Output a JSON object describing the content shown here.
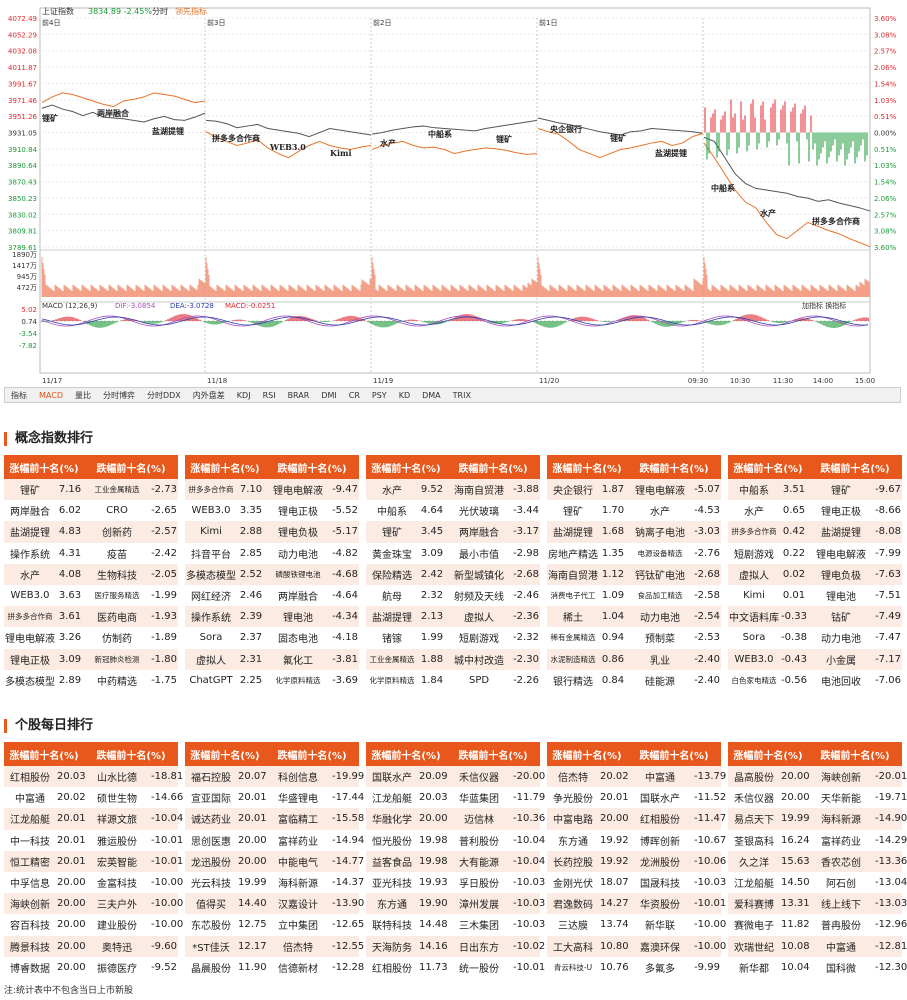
{
  "chart": {
    "index_name": "上证指数",
    "index_value": "3834.89",
    "index_change": "-2.45%",
    "mode": "分时",
    "leading_indicator": "领先指标",
    "price_ticks": [
      "4072.49",
      "4052.29",
      "4032.08",
      "4011.87",
      "3991.67",
      "3971.46",
      "3951.26",
      "3931.05",
      "3910.84",
      "3890.64",
      "3870.43",
      "3850.23",
      "3830.02",
      "3809.81",
      "3789.61"
    ],
    "pct_ticks": [
      "3.60%",
      "3.08%",
      "2.57%",
      "2.06%",
      "1.54%",
      "1.03%",
      "0.51%",
      "0.00%",
      "0.51%",
      "1.03%",
      "1.54%",
      "2.06%",
      "2.57%",
      "3.08%",
      "3.60%"
    ],
    "prev_day_labels": [
      "前4日",
      "前3日",
      "前2日",
      "前1日"
    ],
    "volume_ticks": [
      "1890万",
      "1417万",
      "945万",
      "472万"
    ],
    "macd_label": "MACD (12,26,9)",
    "macd_dif": "DIF:-3.0854",
    "macd_dea": "DEA:-3.0728",
    "macd_macd": "MACD:-0.0251",
    "macd_ticks": [
      "5.02",
      "0.74",
      "-3.54",
      "-7.82"
    ],
    "macd_tools": "加指标 换指标",
    "date_ticks": [
      "11/17",
      "11/18",
      "11/19",
      "11/20"
    ],
    "time_ticks": [
      "09:30",
      "10:30",
      "11:30",
      "14:00",
      "15:00"
    ],
    "annotations": [
      "锂矿",
      "两岸融合",
      "盐湖提锂",
      "拼多多合作商",
      "WEB3.0",
      "Kimi",
      "水产",
      "中船系",
      "锂矿",
      "央企银行",
      "锂矿",
      "盐湖提锂",
      "中船系",
      "水产",
      "拼多多合作商"
    ],
    "colors": {
      "up": "#e0262e",
      "down": "#1a9a35",
      "price": "#555555",
      "leading": "#e8742a",
      "volume": "#f08a6a",
      "dif": "#aa4cc0",
      "dea": "#2c3fa8"
    }
  },
  "indicator_bar": [
    "指标",
    "MACD",
    "量比",
    "分时博弈",
    "分时DDX",
    "内外盘差",
    "KDJ",
    "RSI",
    "BRAR",
    "DMI",
    "CR",
    "PSY",
    "KD",
    "DMA",
    "TRIX"
  ],
  "sections": {
    "concept_title": "概念指数排行",
    "stock_title": "个股每日排行"
  },
  "headers": {
    "up": "涨幅前十名(%)",
    "down": "跌幅前十名(%)"
  },
  "concept_panels": [
    {
      "rows": [
        [
          "锂矿",
          "7.16",
          "工业金属精选",
          "-2.73"
        ],
        [
          "两岸融合",
          "6.02",
          "CRO",
          "-2.65"
        ],
        [
          "盐湖提锂",
          "4.83",
          "创新药",
          "-2.57"
        ],
        [
          "操作系统",
          "4.31",
          "疫苗",
          "-2.42"
        ],
        [
          "水产",
          "4.08",
          "生物科技",
          "-2.05"
        ],
        [
          "WEB3.0",
          "3.63",
          "医疗服务精选",
          "-1.99"
        ],
        [
          "拼多多合作商",
          "3.61",
          "医药电商",
          "-1.93"
        ],
        [
          "锂电电解液",
          "3.26",
          "仿制药",
          "-1.89"
        ],
        [
          "锂电正极",
          "3.09",
          "新冠肺炎检测",
          "-1.80"
        ],
        [
          "多模态模型",
          "2.89",
          "中药精选",
          "-1.75"
        ]
      ]
    },
    {
      "rows": [
        [
          "拼多多合作商",
          "7.10",
          "锂电电解液",
          "-9.47"
        ],
        [
          "WEB3.0",
          "3.35",
          "锂电正极",
          "-5.52"
        ],
        [
          "Kimi",
          "2.88",
          "锂电负极",
          "-5.17"
        ],
        [
          "抖音平台",
          "2.85",
          "动力电池",
          "-4.82"
        ],
        [
          "多模态模型",
          "2.52",
          "磷酸铁锂电池",
          "-4.68"
        ],
        [
          "网红经济",
          "2.46",
          "两岸融合",
          "-4.64"
        ],
        [
          "操作系统",
          "2.39",
          "锂电池",
          "-4.34"
        ],
        [
          "Sora",
          "2.37",
          "固态电池",
          "-4.18"
        ],
        [
          "虚拟人",
          "2.31",
          "氟化工",
          "-3.81"
        ],
        [
          "ChatGPT",
          "2.25",
          "化学原料精选",
          "-3.69"
        ]
      ]
    },
    {
      "rows": [
        [
          "水产",
          "9.52",
          "海南自贸港",
          "-3.88"
        ],
        [
          "中船系",
          "4.64",
          "光伏玻璃",
          "-3.44"
        ],
        [
          "锂矿",
          "3.45",
          "两岸融合",
          "-3.17"
        ],
        [
          "黄金珠宝",
          "3.09",
          "最小市值",
          "-2.98"
        ],
        [
          "保险精选",
          "2.42",
          "新型城镇化",
          "-2.68"
        ],
        [
          "航母",
          "2.32",
          "射频及天线",
          "-2.46"
        ],
        [
          "盐湖提锂",
          "2.13",
          "虚拟人",
          "-2.36"
        ],
        [
          "锗镓",
          "1.99",
          "短剧游戏",
          "-2.32"
        ],
        [
          "工业金属精选",
          "1.88",
          "城中村改造",
          "-2.30"
        ],
        [
          "化学原料精选",
          "1.84",
          "SPD",
          "-2.26"
        ]
      ]
    },
    {
      "rows": [
        [
          "央企银行",
          "1.87",
          "锂电电解液",
          "-5.07"
        ],
        [
          "锂矿",
          "1.70",
          "水产",
          "-4.53"
        ],
        [
          "盐湖提锂",
          "1.68",
          "钠离子电池",
          "-3.03"
        ],
        [
          "房地产精选",
          "1.35",
          "电源设备精选",
          "-2.76"
        ],
        [
          "海南自贸港",
          "1.12",
          "钙钛矿电池",
          "-2.68"
        ],
        [
          "消费电子代工",
          "1.09",
          "食品加工精选",
          "-2.58"
        ],
        [
          "稀土",
          "1.04",
          "动力电池",
          "-2.54"
        ],
        [
          "稀有金属精选",
          "0.94",
          "预制菜",
          "-2.53"
        ],
        [
          "水泥制造精选",
          "0.86",
          "乳业",
          "-2.40"
        ],
        [
          "银行精选",
          "0.84",
          "硅能源",
          "-2.40"
        ]
      ]
    },
    {
      "rows": [
        [
          "中船系",
          "3.51",
          "锂矿",
          "-9.67"
        ],
        [
          "水产",
          "0.65",
          "锂电正极",
          "-8.66"
        ],
        [
          "拼多多合作商",
          "0.42",
          "盐湖提锂",
          "-8.08"
        ],
        [
          "短剧游戏",
          "0.22",
          "锂电电解液",
          "-7.99"
        ],
        [
          "虚拟人",
          "0.02",
          "锂电负极",
          "-7.63"
        ],
        [
          "Kimi",
          "0.01",
          "锂电池",
          "-7.51"
        ],
        [
          "中文语料库",
          "-0.33",
          "钴矿",
          "-7.49"
        ],
        [
          "Sora",
          "-0.38",
          "动力电池",
          "-7.47"
        ],
        [
          "WEB3.0",
          "-0.43",
          "小金属",
          "-7.17"
        ],
        [
          "白色家电精选",
          "-0.56",
          "电池回收",
          "-7.06"
        ]
      ]
    }
  ],
  "stock_panels": [
    {
      "rows": [
        [
          "红相股份",
          "20.03",
          "山水比德",
          "-18.81"
        ],
        [
          "中富通",
          "20.02",
          "硕世生物",
          "-14.66"
        ],
        [
          "江龙船艇",
          "20.01",
          "祥源文旅",
          "-10.04"
        ],
        [
          "中一科技",
          "20.01",
          "雅运股份",
          "-10.01"
        ],
        [
          "恒工精密",
          "20.01",
          "宏英智能",
          "-10.01"
        ],
        [
          "中孚信息",
          "20.00",
          "金富科技",
          "-10.00"
        ],
        [
          "海峡创新",
          "20.00",
          "三夫户外",
          "-10.00"
        ],
        [
          "容百科技",
          "20.00",
          "建业股份",
          "-10.00"
        ],
        [
          "腾景科技",
          "20.00",
          "奥特迅",
          "-9.60"
        ],
        [
          "博睿数据",
          "20.00",
          "振德医疗",
          "-9.52"
        ]
      ]
    },
    {
      "rows": [
        [
          "福石控股",
          "20.07",
          "科创信息",
          "-19.99"
        ],
        [
          "宣亚国际",
          "20.01",
          "华盛锂电",
          "-17.44"
        ],
        [
          "诚达药业",
          "20.01",
          "富临精工",
          "-15.58"
        ],
        [
          "思创医惠",
          "20.00",
          "富祥药业",
          "-14.94"
        ],
        [
          "龙迅股份",
          "20.00",
          "中能电气",
          "-14.77"
        ],
        [
          "光云科技",
          "19.99",
          "海科新源",
          "-14.37"
        ],
        [
          "值得买",
          "14.40",
          "汉嘉设计",
          "-13.90"
        ],
        [
          "东芯股份",
          "12.75",
          "立中集团",
          "-12.65"
        ],
        [
          "*ST佳沃",
          "12.17",
          "倍杰特",
          "-12.55"
        ],
        [
          "晶晨股份",
          "11.90",
          "信德新材",
          "-12.28"
        ]
      ]
    },
    {
      "rows": [
        [
          "国联水产",
          "20.09",
          "禾信仪器",
          "-20.00"
        ],
        [
          "江龙船艇",
          "20.03",
          "华蓝集团",
          "-11.79"
        ],
        [
          "华融化学",
          "20.00",
          "迈信林",
          "-10.36"
        ],
        [
          "恒光股份",
          "19.98",
          "普利股份",
          "-10.04"
        ],
        [
          "益客食品",
          "19.98",
          "大有能源",
          "-10.04"
        ],
        [
          "亚光科技",
          "19.93",
          "孚日股份",
          "-10.03"
        ],
        [
          "东方通",
          "19.90",
          "漳州发展",
          "-10.03"
        ],
        [
          "联特科技",
          "14.48",
          "三木集团",
          "-10.03"
        ],
        [
          "天海防务",
          "14.16",
          "日出东方",
          "-10.02"
        ],
        [
          "红相股份",
          "11.73",
          "统一股份",
          "-10.01"
        ]
      ]
    },
    {
      "rows": [
        [
          "倍杰特",
          "20.02",
          "中富通",
          "-13.79"
        ],
        [
          "争光股份",
          "20.01",
          "国联水产",
          "-11.52"
        ],
        [
          "中富电路",
          "20.00",
          "红相股份",
          "-11.47"
        ],
        [
          "东方通",
          "19.92",
          "博晖创新",
          "-10.67"
        ],
        [
          "长药控股",
          "19.92",
          "龙洲股份",
          "-10.06"
        ],
        [
          "金刚光伏",
          "18.07",
          "国晟科技",
          "-10.03"
        ],
        [
          "君逸数码",
          "14.27",
          "华资股份",
          "-10.01"
        ],
        [
          "三达膜",
          "13.74",
          "新华联",
          "-10.00"
        ],
        [
          "工大高科",
          "10.80",
          "嘉澳环保",
          "-10.00"
        ],
        [
          "青云科技-U",
          "10.76",
          "多氟多",
          "-9.99"
        ]
      ]
    },
    {
      "rows": [
        [
          "晶高股份",
          "20.00",
          "海峡创新",
          "-20.01"
        ],
        [
          "禾信仪器",
          "20.00",
          "天华新能",
          "-19.71"
        ],
        [
          "易点天下",
          "19.99",
          "海科新源",
          "-14.90"
        ],
        [
          "荃银高科",
          "16.24",
          "富祥药业",
          "-14.29"
        ],
        [
          "久之洋",
          "15.63",
          "香农芯创",
          "-13.36"
        ],
        [
          "江龙船艇",
          "14.50",
          "阿石创",
          "-13.04"
        ],
        [
          "爱科赛博",
          "13.31",
          "线上线下",
          "-13.03"
        ],
        [
          "赛微电子",
          "11.82",
          "普冉股份",
          "-12.96"
        ],
        [
          "欢瑞世纪",
          "10.08",
          "中富通",
          "-12.81"
        ],
        [
          "新华都",
          "10.04",
          "国科微",
          "-12.30"
        ]
      ]
    }
  ],
  "note": "注:统计表中不包含当日上市新股"
}
